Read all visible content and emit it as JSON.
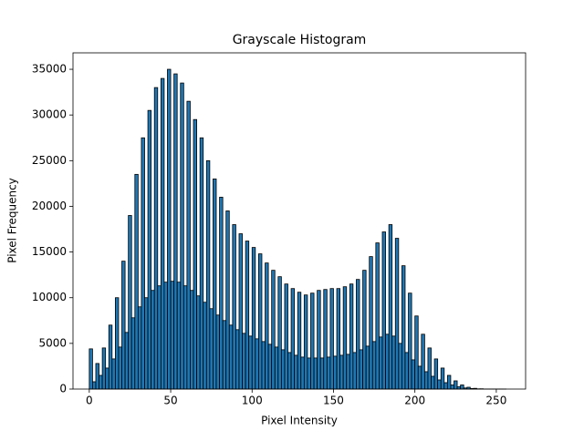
{
  "chart_data": {
    "type": "histogram",
    "title": "Grayscale Histogram",
    "x_label": "Pixel Intensity",
    "y_label": "Pixel Frequency",
    "color": "#1f77b4",
    "edgecolor": "#000000",
    "bins": [
      0,
      2,
      4,
      6,
      8,
      10,
      12,
      14,
      16,
      18,
      20,
      22,
      24,
      26,
      28,
      30,
      32,
      34,
      36,
      38,
      40,
      42,
      44,
      46,
      48,
      50,
      52,
      54,
      56,
      58,
      60,
      62,
      64,
      66,
      68,
      70,
      72,
      74,
      76,
      78,
      80,
      82,
      84,
      86,
      88,
      90,
      92,
      94,
      96,
      98,
      100,
      102,
      104,
      106,
      108,
      110,
      112,
      114,
      116,
      118,
      120,
      122,
      124,
      126,
      128,
      130,
      132,
      134,
      136,
      138,
      140,
      142,
      144,
      146,
      148,
      150,
      152,
      154,
      156,
      158,
      160,
      162,
      164,
      166,
      168,
      170,
      172,
      174,
      176,
      178,
      180,
      182,
      184,
      186,
      188,
      190,
      192,
      194,
      196,
      198,
      200,
      202,
      204,
      206,
      208,
      210,
      212,
      214,
      216,
      218,
      220,
      222,
      224,
      226,
      228,
      230,
      232,
      234,
      236,
      238,
      240,
      242,
      244,
      246,
      248,
      250,
      252,
      254,
      256
    ],
    "counts": [
      4400,
      800,
      2800,
      1500,
      4500,
      2300,
      7000,
      3300,
      10000,
      4600,
      14000,
      6200,
      19000,
      7800,
      23500,
      9000,
      27500,
      10000,
      30500,
      10800,
      33000,
      11300,
      34000,
      11700,
      35000,
      11800,
      34500,
      11700,
      33500,
      11300,
      31500,
      10800,
      29500,
      10200,
      27500,
      9500,
      25000,
      8800,
      23000,
      8100,
      21000,
      7500,
      19500,
      7000,
      18000,
      6500,
      17000,
      6100,
      16200,
      5800,
      15500,
      5500,
      14800,
      5200,
      13800,
      4900,
      13000,
      4600,
      12300,
      4300,
      11500,
      4000,
      11000,
      3700,
      10600,
      3500,
      10300,
      3400,
      10500,
      3400,
      10800,
      3400,
      10900,
      3500,
      11000,
      3600,
      11000,
      3700,
      11200,
      3800,
      11500,
      4000,
      12000,
      4300,
      13000,
      4700,
      14500,
      5200,
      16000,
      5700,
      17200,
      6000,
      18000,
      5800,
      16500,
      5000,
      13500,
      4000,
      10500,
      3200,
      8000,
      2500,
      6000,
      1900,
      4500,
      1400,
      3300,
      1000,
      2300,
      700,
      1500,
      450,
      900,
      250,
      450,
      120,
      200,
      60,
      80,
      25,
      30,
      10,
      10,
      4,
      5,
      2,
      3,
      1
    ],
    "xlim": [
      -10,
      268
    ],
    "ylim": [
      0,
      36800
    ],
    "xticks": [
      0,
      50,
      100,
      150,
      200,
      250
    ],
    "yticks": [
      0,
      5000,
      10000,
      15000,
      20000,
      25000,
      30000,
      35000
    ]
  }
}
